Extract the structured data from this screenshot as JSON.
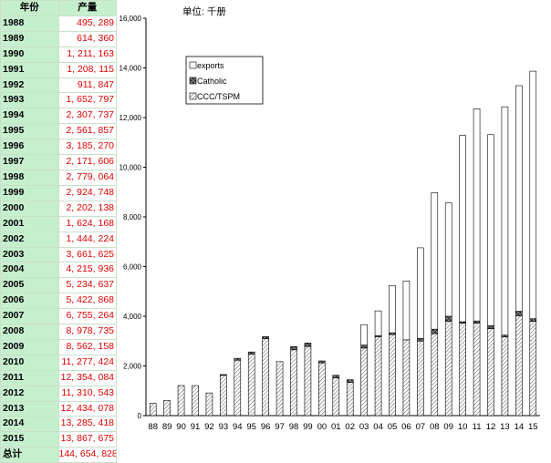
{
  "table": {
    "headers": [
      "年份",
      "产量"
    ],
    "rows": [
      {
        "year": "1988",
        "value": "495, 289"
      },
      {
        "year": "1989",
        "value": "614, 360"
      },
      {
        "year": "1990",
        "value": "1, 211, 163"
      },
      {
        "year": "1991",
        "value": "1, 208, 115"
      },
      {
        "year": "1992",
        "value": "911, 847"
      },
      {
        "year": "1993",
        "value": "1, 652, 797"
      },
      {
        "year": "1994",
        "value": "2, 307, 737"
      },
      {
        "year": "1995",
        "value": "2, 561, 857"
      },
      {
        "year": "1996",
        "value": "3, 185, 270"
      },
      {
        "year": "1997",
        "value": "2, 171, 606"
      },
      {
        "year": "1998",
        "value": "2, 779, 064"
      },
      {
        "year": "1999",
        "value": "2, 924, 748"
      },
      {
        "year": "2000",
        "value": "2, 202, 138"
      },
      {
        "year": "2001",
        "value": "1, 624, 168"
      },
      {
        "year": "2002",
        "value": "1, 444, 224"
      },
      {
        "year": "2003",
        "value": "3, 661, 625"
      },
      {
        "year": "2004",
        "value": "4, 215, 936"
      },
      {
        "year": "2005",
        "value": "5, 234, 637"
      },
      {
        "year": "2006",
        "value": "5, 422, 868"
      },
      {
        "year": "2007",
        "value": "6, 755, 264"
      },
      {
        "year": "2008",
        "value": "8, 978, 735"
      },
      {
        "year": "2009",
        "value": "8, 562, 158"
      },
      {
        "year": "2010",
        "value": "11, 277, 424"
      },
      {
        "year": "2011",
        "value": "12, 354, 084"
      },
      {
        "year": "2012",
        "value": "11, 310, 543"
      },
      {
        "year": "2013",
        "value": "12, 434, 078"
      },
      {
        "year": "2014",
        "value": "13, 285, 418"
      },
      {
        "year": "2015",
        "value": "13, 867, 675"
      }
    ],
    "total_label": "总计",
    "total_value": "144, 654, 828"
  },
  "chart_data": {
    "type": "bar",
    "stacked": true,
    "unit_label": "单位: 千册",
    "categories": [
      "88",
      "89",
      "90",
      "91",
      "92",
      "93",
      "94",
      "95",
      "96",
      "97",
      "98",
      "99",
      "00",
      "01",
      "02",
      "03",
      "04",
      "05",
      "06",
      "07",
      "08",
      "09",
      "10",
      "11",
      "12",
      "13",
      "14",
      "15"
    ],
    "series": [
      {
        "name": "CCC/TSPM",
        "values": [
          495,
          614,
          1211,
          1208,
          912,
          1620,
          2230,
          2480,
          3100,
          2172,
          2650,
          2780,
          2120,
          1520,
          1340,
          2720,
          3180,
          3260,
          3050,
          3000,
          3300,
          3800,
          3720,
          3720,
          3500,
          3170,
          4020,
          3800
        ]
      },
      {
        "name": "Catholic",
        "values": [
          0,
          0,
          0,
          0,
          0,
          33,
          78,
          82,
          85,
          0,
          129,
          145,
          82,
          104,
          104,
          120,
          36,
          75,
          0,
          110,
          180,
          200,
          60,
          90,
          120,
          70,
          180,
          100
        ]
      },
      {
        "name": "exports",
        "values": [
          0,
          0,
          0,
          0,
          0,
          0,
          0,
          0,
          0,
          0,
          0,
          0,
          0,
          0,
          0,
          822,
          1000,
          1900,
          2373,
          3645,
          5499,
          4562,
          7497,
          8544,
          7691,
          9194,
          9085,
          9968
        ]
      }
    ],
    "ylim": [
      0,
      16000
    ],
    "yticks": [
      0,
      2000,
      4000,
      6000,
      8000,
      10000,
      12000,
      14000,
      16000
    ],
    "ytick_labels": [
      "0",
      "2,000",
      "4,000",
      "6,000",
      "8,000",
      "10,000",
      "12,000",
      "14,000",
      "16,000"
    ],
    "grid": false,
    "legend_position": "top-left",
    "legend_order": [
      "exports",
      "Catholic",
      "CCC/TSPM"
    ]
  }
}
